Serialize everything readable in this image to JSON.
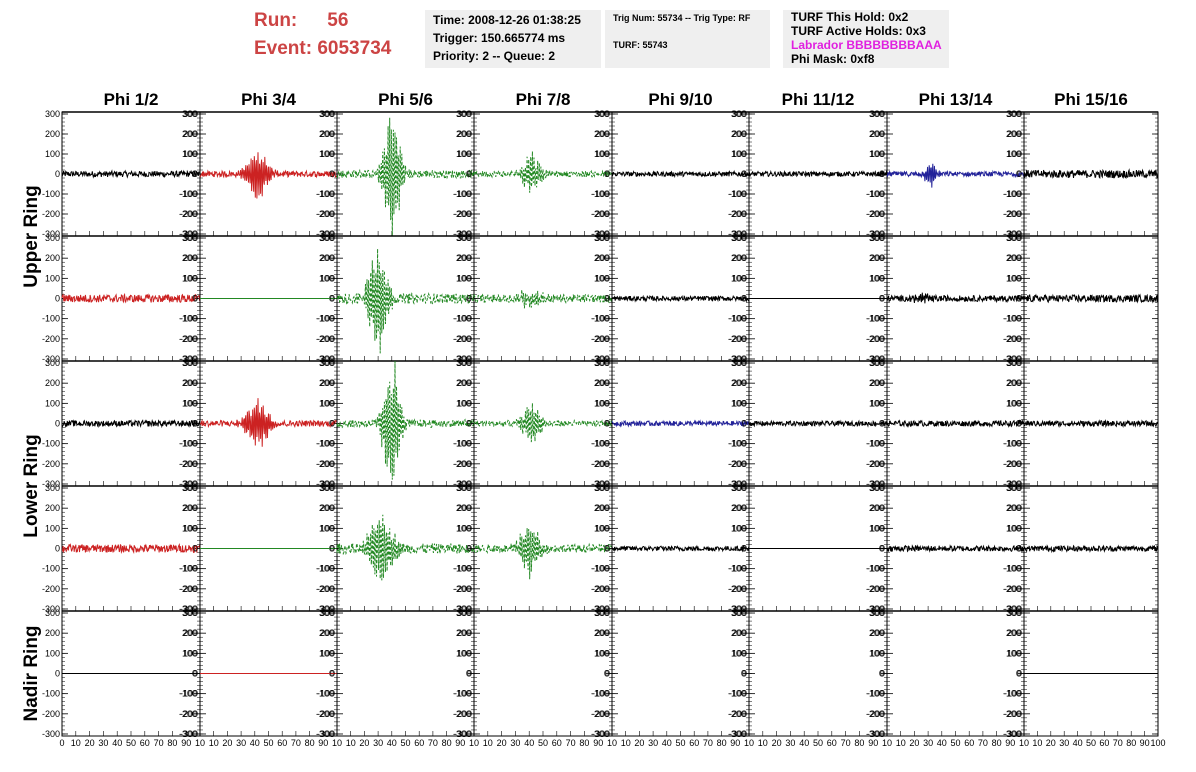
{
  "header": {
    "run_label": "Run:",
    "run_value": "56",
    "event_label": "Event:",
    "event_value": "6053734",
    "time": "Time: 2008-12-26 01:38:25",
    "trigger": "Trigger: 150.665774 ms",
    "priority": "Priority: 2 -- Queue: 2",
    "trig_num": "Trig Num: 55734 -- Trig Type: RF",
    "turf": "TURF: 55743",
    "turf_this_hold": "TURF This Hold: 0x2",
    "turf_active_holds": "TURF Active Holds: 0x3",
    "labrador": "Labrador BBBBBBBBAAA",
    "phi_mask": "Phi Mask: 0xf8",
    "colors": {
      "run": "#cc4444",
      "labrador": "#e020e0",
      "box": "#efefef"
    }
  },
  "chart_data": {
    "type": "line",
    "title": "",
    "columns": [
      "Phi 1/2",
      "Phi 3/4",
      "Phi 5/6",
      "Phi 7/8",
      "Phi 9/10",
      "Phi 11/12",
      "Phi 13/14",
      "Phi 15/16"
    ],
    "rows": [
      "Upper Ring",
      "Lower Ring",
      "Nadir Ring"
    ],
    "ylim": [
      -310,
      310
    ],
    "xlim": [
      0,
      100
    ],
    "y_ticks": [
      -300,
      -200,
      -100,
      0,
      100,
      200,
      300
    ],
    "x_ticks": [
      0,
      10,
      20,
      30,
      40,
      50,
      60,
      70,
      80,
      90,
      100
    ],
    "x_tick_labels_first": [
      "0",
      "10",
      "20",
      "30",
      "40",
      "50",
      "60",
      "70",
      "80",
      "90",
      "10"
    ],
    "x_tick_labels_mid": [
      "10",
      "20",
      "30",
      "40",
      "50",
      "60",
      "70",
      "80",
      "90",
      "10"
    ],
    "x_tick_labels_last": [
      "10",
      "20",
      "30",
      "40",
      "50",
      "60",
      "70",
      "80",
      "90",
      "100"
    ],
    "series_colors": {
      "black": "#000000",
      "red": "#cc2222",
      "green": "#228822",
      "blue": "#222299"
    },
    "panels": [
      [
        {
          "color": "black",
          "amp": 15,
          "burst": 0,
          "dash": false
        },
        {
          "color": "red",
          "amp": 15,
          "burst": 120,
          "center": 42,
          "width": 9,
          "dash": false
        },
        {
          "color": "green",
          "amp": 20,
          "burst": 300,
          "center": 40,
          "width": 7,
          "dash": true
        },
        {
          "color": "green",
          "amp": 15,
          "burst": 110,
          "center": 42,
          "width": 7,
          "dash": true
        },
        {
          "color": "black",
          "amp": 12,
          "burst": 0,
          "dash": false
        },
        {
          "color": "black",
          "amp": 12,
          "burst": 0,
          "dash": false
        },
        {
          "color": "blue",
          "amp": 12,
          "burst": 60,
          "center": 32,
          "width": 5,
          "dash": false
        },
        {
          "color": "black",
          "amp": 20,
          "burst": 0,
          "dash": false
        }
      ],
      [
        {
          "color": "red",
          "amp": 20,
          "burst": 0,
          "dash": false
        },
        {
          "color": "green",
          "amp": 0,
          "burst": 0,
          "dash": false
        },
        {
          "color": "green",
          "amp": 25,
          "burst": 260,
          "center": 30,
          "width": 8,
          "dash": true
        },
        {
          "color": "green",
          "amp": 20,
          "burst": 40,
          "center": 40,
          "width": 10,
          "dash": true
        },
        {
          "color": "black",
          "amp": 12,
          "burst": 0,
          "dash": false
        },
        {
          "color": "black",
          "amp": 0,
          "burst": 0,
          "dash": false
        },
        {
          "color": "black",
          "amp": 15,
          "burst": 30,
          "center": 25,
          "width": 6,
          "dash": false
        },
        {
          "color": "black",
          "amp": 18,
          "burst": 0,
          "dash": false
        }
      ],
      [
        {
          "color": "black",
          "amp": 15,
          "burst": 0,
          "dash": false
        },
        {
          "color": "red",
          "amp": 15,
          "burst": 120,
          "center": 42,
          "width": 9,
          "dash": false
        },
        {
          "color": "green",
          "amp": 20,
          "burst": 300,
          "center": 40,
          "width": 7,
          "dash": true
        },
        {
          "color": "green",
          "amp": 15,
          "burst": 100,
          "center": 42,
          "width": 7,
          "dash": true
        },
        {
          "color": "blue",
          "amp": 12,
          "burst": 0,
          "dash": false
        },
        {
          "color": "black",
          "amp": 12,
          "burst": 0,
          "dash": false
        },
        {
          "color": "black",
          "amp": 14,
          "burst": 0,
          "dash": false
        },
        {
          "color": "black",
          "amp": 14,
          "burst": 0,
          "dash": false
        }
      ],
      [
        {
          "color": "red",
          "amp": 20,
          "burst": 0,
          "dash": false
        },
        {
          "color": "green",
          "amp": 0,
          "burst": 0,
          "dash": false
        },
        {
          "color": "green",
          "amp": 25,
          "burst": 200,
          "center": 32,
          "width": 9,
          "dash": true
        },
        {
          "color": "green",
          "amp": 20,
          "burst": 130,
          "center": 40,
          "width": 8,
          "dash": true
        },
        {
          "color": "black",
          "amp": 12,
          "burst": 0,
          "dash": false
        },
        {
          "color": "black",
          "amp": 0,
          "burst": 0,
          "dash": false
        },
        {
          "color": "black",
          "amp": 14,
          "burst": 0,
          "dash": false
        },
        {
          "color": "black",
          "amp": 14,
          "burst": 0,
          "dash": false
        }
      ],
      [
        {
          "color": "black",
          "amp": 0,
          "burst": 0,
          "dash": false
        },
        {
          "color": "red",
          "amp": 0,
          "burst": 0,
          "dash": false
        },
        null,
        null,
        null,
        null,
        null,
        {
          "color": "black",
          "amp": 0,
          "burst": 0,
          "dash": false
        }
      ]
    ]
  }
}
